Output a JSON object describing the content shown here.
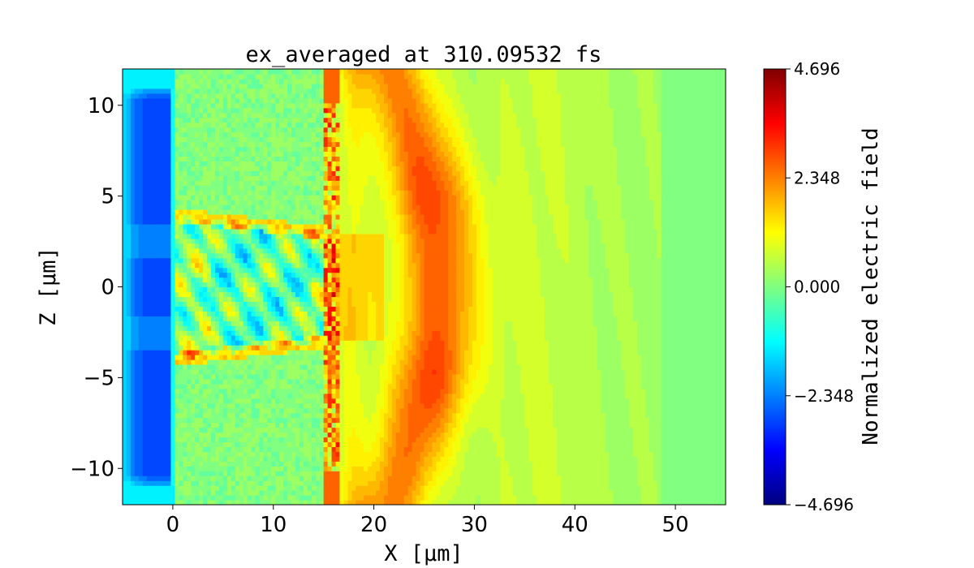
{
  "chart_data": {
    "type": "heatmap",
    "title": "ex_averaged at 310.09532 fs",
    "xlabel": "X [μm]",
    "ylabel": "Z [μm]",
    "xlim": [
      -5,
      55
    ],
    "ylim": [
      -12,
      12
    ],
    "x_ticks": [
      0,
      10,
      20,
      30,
      40,
      50
    ],
    "x_tick_labels": [
      "0",
      "10",
      "20",
      "30",
      "40",
      "50"
    ],
    "y_ticks": [
      -10,
      -5,
      0,
      5,
      10
    ],
    "y_tick_labels": [
      "−10",
      "−5",
      "0",
      "5",
      "10"
    ],
    "colormap": "jet",
    "colorbar": {
      "label": "Normalized electric field",
      "range": [
        -4.696,
        4.696
      ],
      "ticks": [
        -4.696,
        -2.348,
        0.0,
        2.348,
        4.696
      ],
      "tick_labels": [
        "−4.696",
        "−2.348",
        "0.000",
        "2.348",
        "4.696"
      ],
      "levels": 36
    },
    "features": [
      {
        "name": "negative field slab",
        "x_range": [
          -5,
          0
        ],
        "z_range": [
          -11,
          11
        ],
        "value": -2.8
      },
      {
        "name": "plasma channel",
        "x_range": [
          0,
          15
        ],
        "z_range": [
          -4,
          4
        ],
        "value": -0.5
      },
      {
        "name": "density front",
        "x": 15,
        "value": 2.5
      },
      {
        "name": "positive wave front",
        "x_range": [
          19,
          30
        ],
        "z_range": [
          -12,
          12
        ],
        "value": 2.3
      }
    ]
  }
}
